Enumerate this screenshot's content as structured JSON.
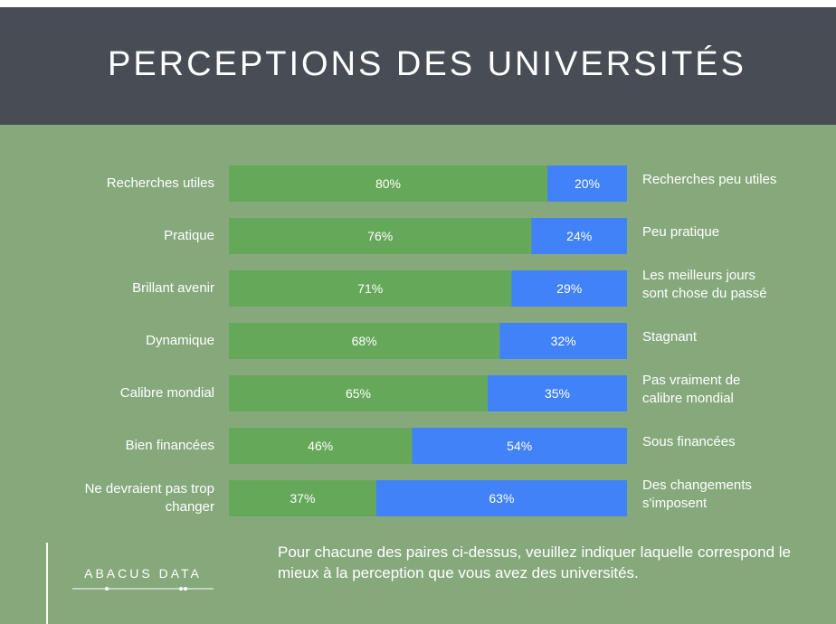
{
  "chart_data": {
    "type": "bar",
    "stacked": true,
    "orientation": "horizontal",
    "title": "PERCEPTIONS DES UNIVERSITÉS",
    "categories": [
      "Recherches utiles",
      "Pratique",
      "Brillant avenir",
      "Dynamique",
      "Calibre mondial",
      "Bien financées",
      "Ne devraient pas trop\nchanger"
    ],
    "right_labels": [
      "Recherches peu utiles",
      "Peu pratique",
      "Les meilleurs jours\nsont chose du passé",
      "Stagnant",
      "Pas vraiment de\ncalibre mondial",
      "Sous financées",
      "Des changements\ns'imposent"
    ],
    "series": [
      {
        "color": "#66a85a",
        "values": [
          80,
          76,
          71,
          68,
          65,
          46,
          37
        ],
        "value_labels": [
          "80%",
          "76%",
          "71%",
          "68%",
          "65%",
          "46%",
          "37%"
        ]
      },
      {
        "color": "#4282f8",
        "values": [
          20,
          24,
          29,
          32,
          35,
          54,
          63
        ],
        "value_labels": [
          "20%",
          "24%",
          "29%",
          "32%",
          "35%",
          "54%",
          "63%"
        ]
      }
    ],
    "xlim": [
      0,
      100
    ],
    "logo": "ABACUS DATA",
    "note": "Pour chacune des paires ci-dessus, veuillez indiquer laquelle correspond le mieux à la perception que vous avez des universités."
  }
}
